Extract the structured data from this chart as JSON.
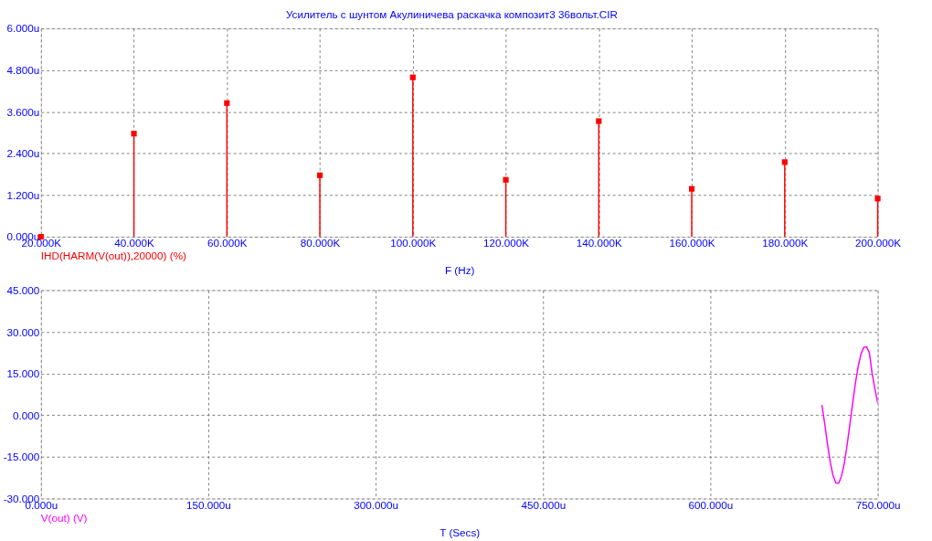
{
  "chart_data": [
    {
      "type": "lollipop",
      "title": "Усилитель с шунтом  Акулиничева раскачка композит3 36вольт.CIR",
      "xlabel": "F (Hz)",
      "legend": "bottom left",
      "grid": true,
      "marker": "square",
      "x": [
        20000,
        40000,
        60000,
        80000,
        100000,
        120000,
        140000,
        160000,
        180000,
        200000
      ],
      "series": [
        {
          "name": "IHD(HARM(V(out)),20000) (%)",
          "color": "#ff0000",
          "values": [
            0,
            2.97,
            3.85,
            1.77,
            4.59,
            1.64,
            3.33,
            1.38,
            2.15,
            1.1
          ]
        }
      ],
      "xlim": [
        20000,
        200000
      ],
      "ylim": [
        0,
        6
      ],
      "xticks": [
        {
          "value": 20000,
          "label": "20.000K"
        },
        {
          "value": 40000,
          "label": "40.000K"
        },
        {
          "value": 60000,
          "label": "60.000K"
        },
        {
          "value": 80000,
          "label": "80.000K"
        },
        {
          "value": 100000,
          "label": "100.000K"
        },
        {
          "value": 120000,
          "label": "120.000K"
        },
        {
          "value": 140000,
          "label": "140.000K"
        },
        {
          "value": 160000,
          "label": "160.000K"
        },
        {
          "value": 180000,
          "label": "180.000K"
        },
        {
          "value": 200000,
          "label": "200.000K"
        }
      ],
      "yticks": [
        {
          "value": 0,
          "label": "0.000u"
        },
        {
          "value": 1.2,
          "label": "1.200u"
        },
        {
          "value": 2.4,
          "label": "2.400u"
        },
        {
          "value": 3.6,
          "label": "3.600u"
        },
        {
          "value": 4.8,
          "label": "4.800u"
        },
        {
          "value": 6,
          "label": "6.000u"
        }
      ]
    },
    {
      "type": "line",
      "xlabel": "T (Secs)",
      "legend": "bottom left",
      "grid": true,
      "line_style": "solid",
      "x": [
        700,
        702.5,
        705,
        707.5,
        710,
        712.5,
        715,
        717.5,
        720,
        722.5,
        725,
        727.5,
        730,
        732.5,
        735,
        737.5,
        740,
        742.5,
        745,
        747.5,
        750
      ],
      "series": [
        {
          "name": "V(out) (V)",
          "color": "#ff00ff",
          "values": [
            3.7,
            -3.0,
            -10.5,
            -17.0,
            -21.8,
            -24.4,
            -24.5,
            -22.0,
            -17.5,
            -11.0,
            -3.5,
            4.0,
            11.5,
            17.5,
            22.0,
            24.4,
            24.6,
            22.5,
            15.0,
            9.5,
            4.3
          ]
        }
      ],
      "xlim": [
        0,
        750
      ],
      "ylim": [
        -30,
        45
      ],
      "xticks": [
        {
          "value": 0,
          "label": "0.000u"
        },
        {
          "value": 150,
          "label": "150.000u"
        },
        {
          "value": 300,
          "label": "300.000u"
        },
        {
          "value": 450,
          "label": "450.000u"
        },
        {
          "value": 600,
          "label": "600.000u"
        },
        {
          "value": 750,
          "label": "750.000u"
        }
      ],
      "yticks": [
        {
          "value": -30,
          "label": "-30.000"
        },
        {
          "value": -15,
          "label": "-15.000"
        },
        {
          "value": 0,
          "label": "0.000"
        },
        {
          "value": 15,
          "label": "15.000"
        },
        {
          "value": 30,
          "label": "30.000"
        },
        {
          "value": 45,
          "label": "45.000"
        }
      ]
    }
  ]
}
